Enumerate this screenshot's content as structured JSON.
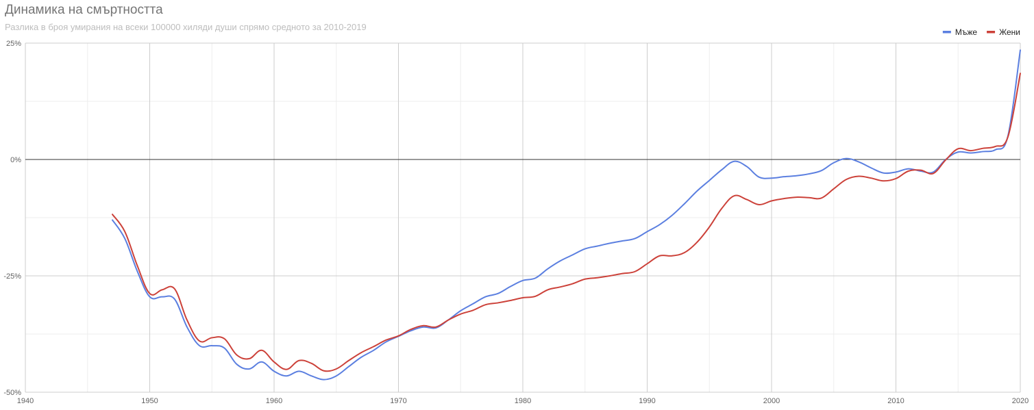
{
  "chart_data": {
    "type": "line",
    "title": "Динамика на смъртността",
    "subtitle": "Разлика в броя умирания на всеки 100000 хиляди души спрямо средното за 2010-2019",
    "xlabel": "",
    "ylabel": "",
    "xlim": [
      1940,
      2020
    ],
    "ylim": [
      -50,
      25
    ],
    "x_ticks": [
      1940,
      1950,
      1960,
      1970,
      1980,
      1990,
      2000,
      2010,
      2020
    ],
    "y_ticks": [
      25,
      0,
      -25,
      -50
    ],
    "y_tick_labels": [
      "25%",
      "0%",
      "-25%",
      "-50%"
    ],
    "x_minor_step": 5,
    "y_minor_step": 12.5,
    "grid": true,
    "baseline": 0,
    "legend_position": "top-right",
    "series": [
      {
        "name": "Мъже",
        "color": "#5b7fe0",
        "x": [
          1947,
          1948,
          1949,
          1950,
          1951,
          1952,
          1953,
          1954,
          1955,
          1956,
          1957,
          1958,
          1959,
          1960,
          1961,
          1962,
          1963,
          1964,
          1965,
          1966,
          1967,
          1968,
          1969,
          1970,
          1971,
          1972,
          1973,
          1974,
          1975,
          1976,
          1977,
          1978,
          1979,
          1980,
          1981,
          1982,
          1983,
          1984,
          1985,
          1986,
          1987,
          1988,
          1989,
          1990,
          1991,
          1992,
          1993,
          1994,
          1995,
          1996,
          1997,
          1998,
          1999,
          2000,
          2001,
          2002,
          2003,
          2004,
          2005,
          2006,
          2007,
          2008,
          2009,
          2010,
          2011,
          2012,
          2013,
          2014,
          2015,
          2016,
          2017,
          2018,
          2019,
          2020
        ],
        "values": [
          -13,
          -17,
          -24,
          -29.5,
          -29.5,
          -30,
          -36,
          -40,
          -40,
          -40.5,
          -44,
          -45,
          -43.5,
          -45.5,
          -46.5,
          -45.5,
          -46.5,
          -47.3,
          -46.5,
          -44.5,
          -42.5,
          -41,
          -39.2,
          -38,
          -36.8,
          -36,
          -36.2,
          -34.5,
          -32.5,
          -31,
          -29.5,
          -28.8,
          -27.3,
          -26,
          -25.5,
          -23.5,
          -21.8,
          -20.5,
          -19.2,
          -18.6,
          -18,
          -17.5,
          -17,
          -15.5,
          -14,
          -12,
          -9.5,
          -6.8,
          -4.5,
          -2.2,
          -0.4,
          -1.5,
          -3.8,
          -4,
          -3.7,
          -3.5,
          -3.1,
          -2.4,
          -0.7,
          0.2,
          -0.5,
          -1.8,
          -2.9,
          -2.7,
          -2,
          -2.5,
          -2.7,
          0,
          1.6,
          1.4,
          1.7,
          2.1,
          5,
          23.5
        ]
      },
      {
        "name": "Жени",
        "color": "#cc4139",
        "x": [
          1947,
          1948,
          1949,
          1950,
          1951,
          1952,
          1953,
          1954,
          1955,
          1956,
          1957,
          1958,
          1959,
          1960,
          1961,
          1962,
          1963,
          1964,
          1965,
          1966,
          1967,
          1968,
          1969,
          1970,
          1971,
          1972,
          1973,
          1974,
          1975,
          1976,
          1977,
          1978,
          1979,
          1980,
          1981,
          1982,
          1983,
          1984,
          1985,
          1986,
          1987,
          1988,
          1989,
          1990,
          1991,
          1992,
          1993,
          1994,
          1995,
          1996,
          1997,
          1998,
          1999,
          2000,
          2001,
          2002,
          2003,
          2004,
          2005,
          2006,
          2007,
          2008,
          2009,
          2010,
          2011,
          2012,
          2013,
          2014,
          2015,
          2016,
          2017,
          2018,
          2019,
          2020
        ],
        "values": [
          -11.8,
          -15.5,
          -22.8,
          -28.8,
          -28,
          -27.8,
          -34.5,
          -39,
          -38.3,
          -38.5,
          -42,
          -42.8,
          -41,
          -43.5,
          -45.1,
          -43.2,
          -43.8,
          -45.4,
          -45,
          -43.2,
          -41.5,
          -40.2,
          -38.8,
          -37.9,
          -36.5,
          -35.7,
          -36,
          -34.5,
          -33.2,
          -32.4,
          -31.2,
          -30.8,
          -30.3,
          -29.7,
          -29.4,
          -28,
          -27.4,
          -26.7,
          -25.7,
          -25.4,
          -25,
          -24.5,
          -24.1,
          -22.4,
          -20.7,
          -20.7,
          -20,
          -17.8,
          -14.5,
          -10.5,
          -7.8,
          -8.6,
          -9.7,
          -8.9,
          -8.4,
          -8.1,
          -8.2,
          -8.3,
          -6.3,
          -4.3,
          -3.6,
          -4,
          -4.6,
          -4.1,
          -2.5,
          -2.3,
          -3,
          -0.1,
          2.3,
          1.9,
          2.4,
          2.8,
          4.8,
          18.5
        ]
      }
    ]
  }
}
